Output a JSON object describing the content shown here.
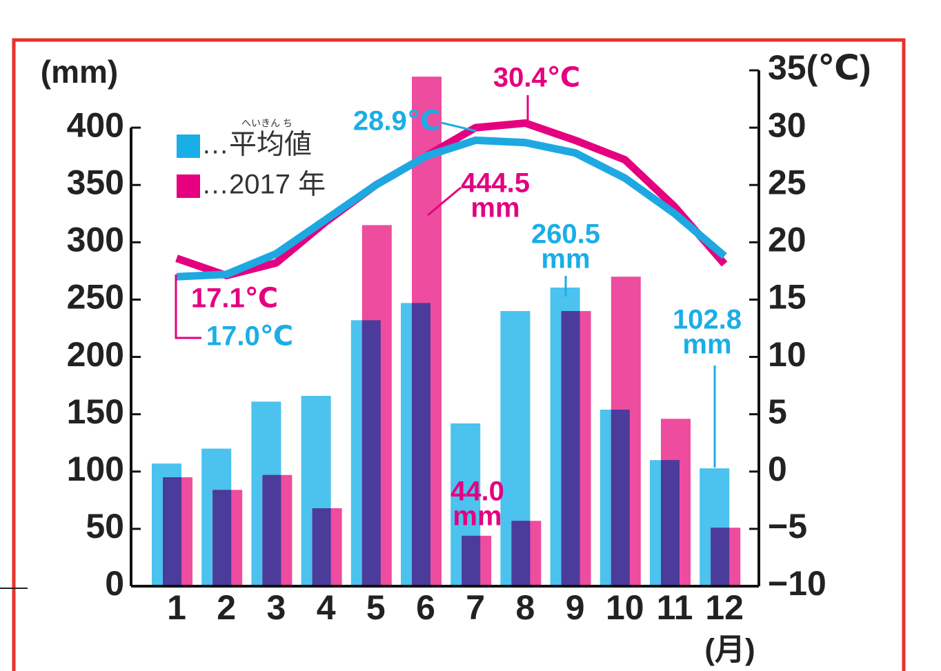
{
  "chart_data": {
    "type": "combo",
    "y_label": "(mm)",
    "x_label": "(月)",
    "categories": [
      "1",
      "2",
      "3",
      "4",
      "5",
      "6",
      "7",
      "8",
      "9",
      "10",
      "11",
      "12"
    ],
    "series": [
      {
        "name": "…平均値",
        "color": "#4cc2ee",
        "legend_color": "#1aaee6",
        "values": [
          107,
          120,
          161,
          166,
          232,
          247,
          142,
          240,
          260.5,
          154,
          110,
          102.8
        ]
      },
      {
        "name": "…2017 年",
        "color": "#ee4c9f",
        "legend_color": "#e6007f",
        "values": [
          95,
          84,
          97,
          68,
          315,
          444.5,
          44.0,
          57,
          240,
          270,
          146,
          51
        ]
      }
    ],
    "overlap_color": "#4b3b9b",
    "legend_ruby": "へいきん ち",
    "temperature": [
      {
        "color": "#e4007f",
        "axis": "y2",
        "values": [
          18.6,
          17.1,
          18.2,
          21.8,
          25.0,
          27.5,
          30.0,
          30.4,
          28.9,
          27.2,
          23.1,
          18.1
        ]
      },
      {
        "color": "#1ea8e2",
        "axis": "y2",
        "values": [
          17.0,
          17.2,
          19.0,
          22.0,
          25.0,
          27.5,
          28.9,
          28.7,
          27.8,
          25.6,
          22.5,
          18.8
        ]
      }
    ],
    "ylim": [
      0,
      450
    ],
    "yticks": [
      0,
      50,
      100,
      150,
      200,
      250,
      300,
      350,
      400
    ],
    "y2lim": [
      -10,
      35
    ],
    "y2ticks": [
      {
        "value": -10,
        "label": "−10"
      },
      {
        "value": -5,
        "label": "−5"
      },
      0,
      5,
      10,
      15,
      20,
      25,
      30,
      {
        "value": 35,
        "label": "35(℃)"
      }
    ],
    "annotations": [
      {
        "lines": [
          "28.9℃"
        ],
        "color": "#1aaee6"
      },
      {
        "lines": [
          "30.4℃"
        ],
        "color": "#e4007f"
      },
      {
        "lines": [
          "444.5",
          "mm"
        ],
        "color": "#e4007f"
      },
      {
        "lines": [
          "260.5",
          "mm"
        ],
        "color": "#1aaee6"
      },
      {
        "lines": [
          "17.1℃"
        ],
        "color": "#e4007f"
      },
      {
        "lines": [
          "17.0℃"
        ],
        "color": "#1aaee6"
      },
      {
        "lines": [
          "102.8",
          "mm"
        ],
        "color": "#1aaee6"
      },
      {
        "lines": [
          "44.0",
          "mm"
        ],
        "color": "#e4007f"
      }
    ]
  }
}
